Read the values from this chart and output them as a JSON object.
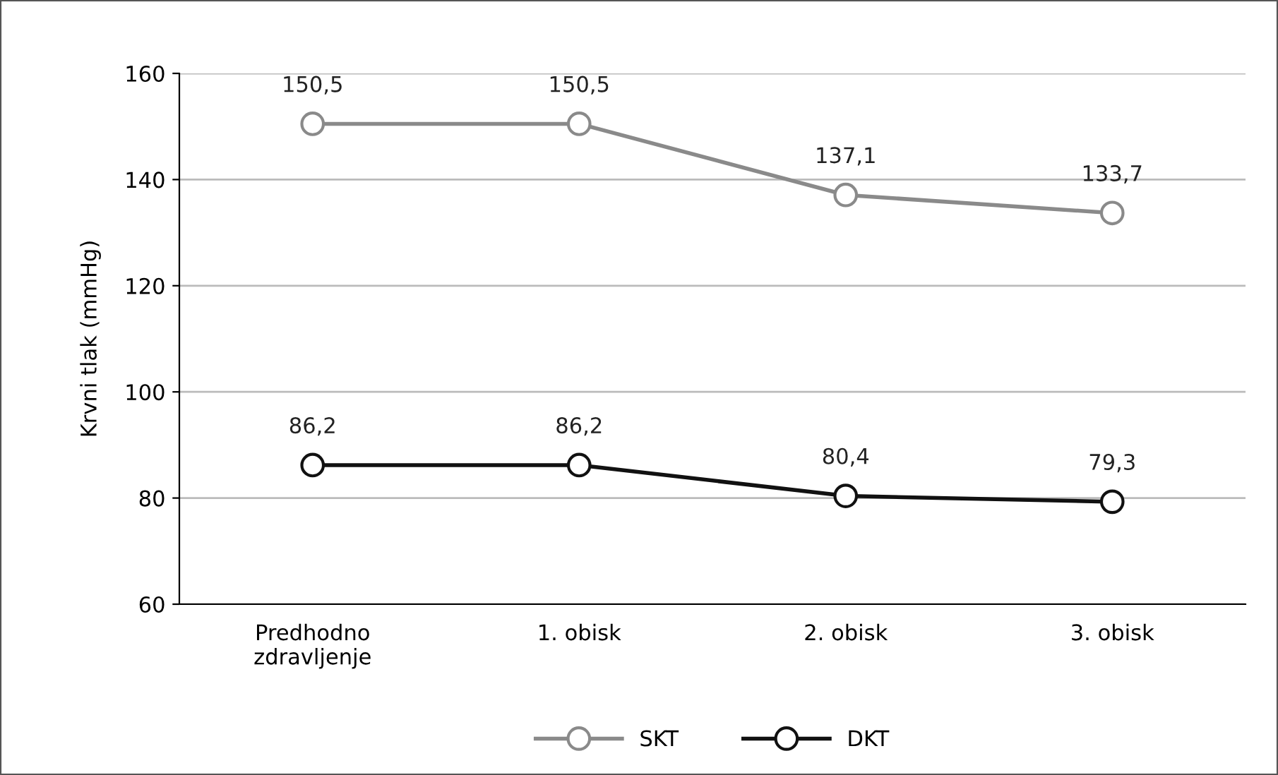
{
  "chart_data": {
    "type": "line",
    "ylabel": "Krvni tlak (mmHg)",
    "categories": [
      "Predhodno\nzdravljenje",
      "1. obisk",
      "2. obisk",
      "3. obisk"
    ],
    "series": [
      {
        "name": "SKT",
        "color": "#8a8a8a",
        "values": [
          150.5,
          150.5,
          137.1,
          133.7
        ],
        "value_labels": [
          "150,5",
          "150,5",
          "137,1",
          "133,7"
        ]
      },
      {
        "name": "DKT",
        "color": "#111111",
        "values": [
          86.2,
          86.2,
          80.4,
          79.3
        ],
        "value_labels": [
          "86,2",
          "86,2",
          "80,4",
          "79,3"
        ]
      }
    ],
    "ylim": [
      60,
      160
    ],
    "yticks": [
      60,
      80,
      100,
      120,
      140,
      160
    ],
    "grid": "y",
    "legend": "bottom",
    "marker": "circle",
    "line_style": "solid"
  }
}
